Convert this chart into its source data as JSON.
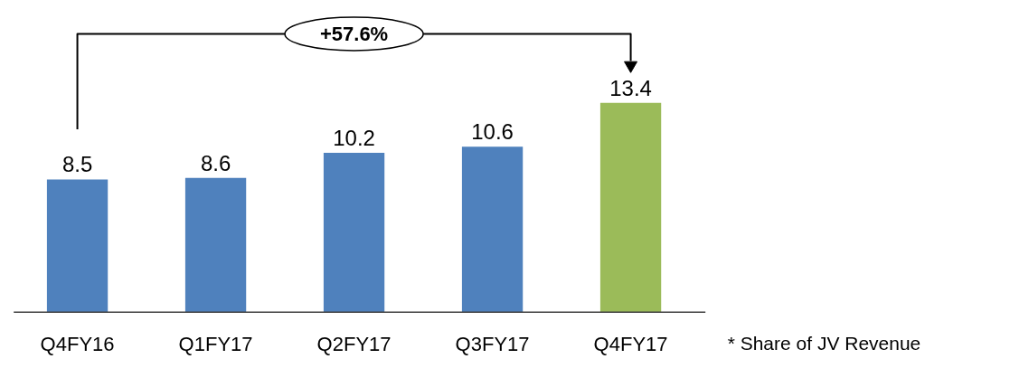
{
  "chart_data": {
    "type": "bar",
    "categories": [
      "Q4FY16",
      "Q1FY17",
      "Q2FY17",
      "Q3FY17",
      "Q4FY17"
    ],
    "values": [
      8.5,
      8.6,
      10.2,
      10.6,
      13.4
    ],
    "colors": [
      "#4f81bd",
      "#4f81bd",
      "#4f81bd",
      "#4f81bd",
      "#9bbb59"
    ],
    "data_labels": true,
    "annotations": [
      "+57.6%",
      "* Share of JV Revenue"
    ]
  }
}
